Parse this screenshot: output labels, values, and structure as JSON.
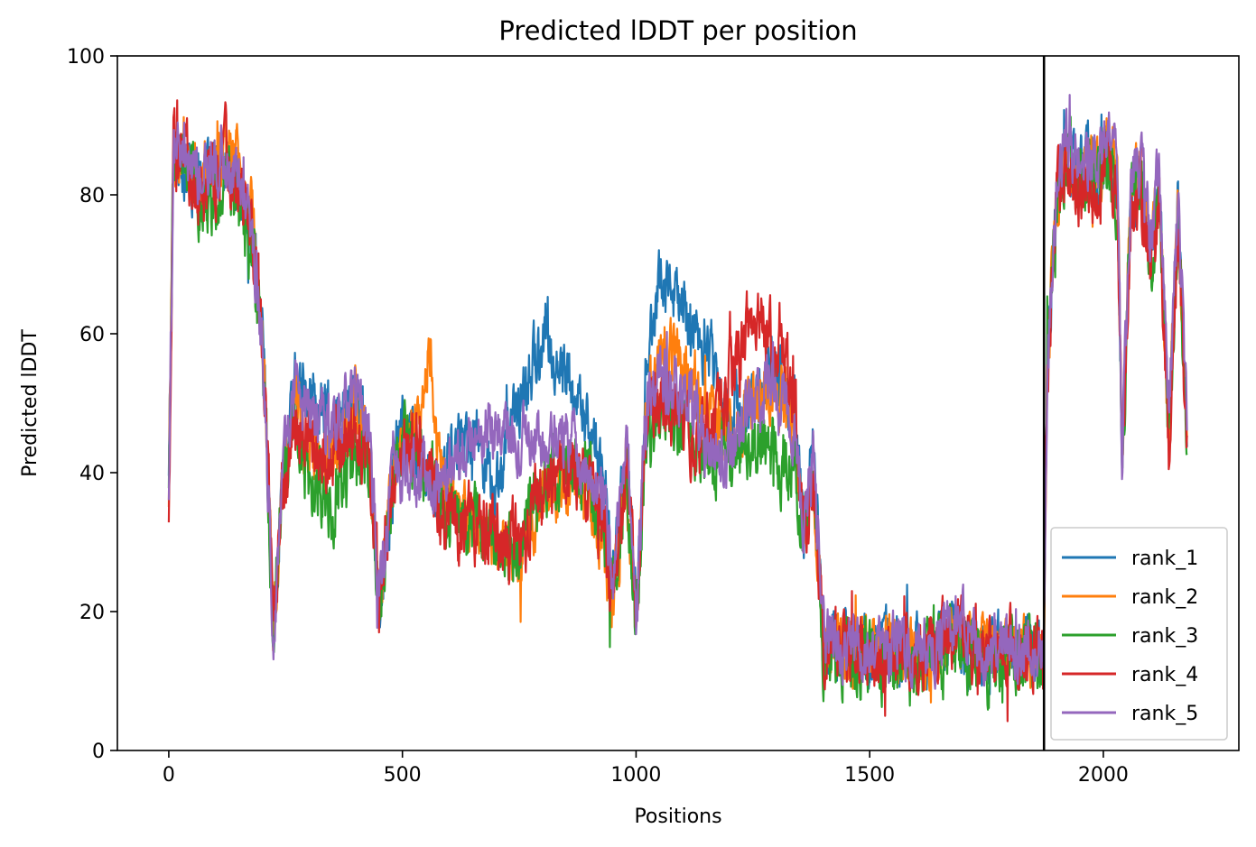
{
  "chart_data": {
    "type": "line",
    "title": "Predicted lDDT per position",
    "xlabel": "Positions",
    "ylabel": "Predicted lDDT",
    "xlim": [
      -110,
      2290
    ],
    "ylim": [
      0,
      100
    ],
    "x_ticks": [
      0,
      500,
      1000,
      1500,
      2000
    ],
    "y_ticks": [
      0,
      20,
      40,
      60,
      80,
      100
    ],
    "grid": false,
    "legend_position": "lower right",
    "vertical_line": 1873,
    "n_positions": 2180,
    "anchor_x": [
      0,
      10,
      40,
      60,
      100,
      120,
      150,
      175,
      200,
      225,
      240,
      270,
      300,
      350,
      400,
      430,
      450,
      480,
      500,
      540,
      560,
      580,
      600,
      620,
      650,
      700,
      750,
      800,
      850,
      900,
      930,
      950,
      980,
      1000,
      1020,
      1050,
      1080,
      1120,
      1160,
      1200,
      1250,
      1300,
      1340,
      1360,
      1380,
      1400,
      1450,
      1500,
      1550,
      1600,
      1650,
      1680,
      1700,
      1750,
      1800,
      1850,
      1872,
      1880,
      1900,
      1920,
      1950,
      1970,
      1990,
      2010,
      2030,
      2040,
      2060,
      2080,
      2100,
      2120,
      2140,
      2160,
      2180
    ],
    "series": [
      {
        "name": "rank_1",
        "color": "#1f77b4",
        "jitter": 4.0,
        "values": [
          38,
          86,
          84,
          81,
          84,
          86,
          82,
          76,
          60,
          16,
          36,
          52,
          52,
          46,
          51,
          43,
          21,
          40,
          48,
          42,
          40,
          36,
          44,
          44,
          47,
          38,
          50,
          59,
          54,
          46,
          41,
          23,
          45,
          18,
          53,
          68,
          66,
          61,
          57,
          49,
          50,
          56,
          48,
          32,
          44,
          16,
          15,
          14,
          15,
          14,
          15,
          17,
          16,
          14,
          14,
          14,
          14,
          55,
          82,
          86,
          83,
          85,
          84,
          88,
          82,
          43,
          80,
          83,
          72,
          82,
          45,
          79,
          43
        ]
      },
      {
        "name": "rank_2",
        "color": "#ff7f0e",
        "jitter": 4.0,
        "values": [
          38,
          86,
          84,
          82,
          84,
          86,
          84,
          78,
          65,
          16,
          36,
          50,
          42,
          43,
          50,
          41,
          21,
          40,
          46,
          47,
          58,
          40,
          36,
          34,
          33,
          30,
          27,
          37,
          39,
          36,
          30,
          21,
          38,
          18,
          48,
          58,
          57,
          54,
          48,
          45,
          50,
          52,
          45,
          30,
          40,
          16,
          15,
          14,
          15,
          14,
          15,
          16,
          16,
          14,
          14,
          14,
          14,
          55,
          80,
          85,
          82,
          84,
          83,
          87,
          82,
          43,
          82,
          84,
          72,
          82,
          45,
          79,
          43
        ]
      },
      {
        "name": "rank_3",
        "color": "#2ca02c",
        "jitter": 4.5,
        "values": [
          38,
          85,
          84,
          80,
          80,
          84,
          77,
          72,
          58,
          16,
          36,
          48,
          38,
          36,
          42,
          42,
          21,
          38,
          45,
          42,
          40,
          36,
          34,
          34,
          33,
          30,
          30,
          39,
          42,
          38,
          33,
          23,
          40,
          18,
          42,
          48,
          48,
          45,
          41,
          44,
          45,
          42,
          40,
          30,
          38,
          14,
          13,
          13,
          13,
          12,
          13,
          14,
          14,
          12,
          13,
          13,
          13,
          55,
          80,
          84,
          82,
          84,
          82,
          86,
          80,
          42,
          80,
          82,
          70,
          80,
          44,
          77,
          43
        ]
      },
      {
        "name": "rank_4",
        "color": "#d62728",
        "jitter": 4.5,
        "values": [
          30,
          85,
          84,
          80,
          82,
          86,
          82,
          76,
          60,
          18,
          36,
          47,
          44,
          43,
          46,
          42,
          21,
          40,
          44,
          44,
          42,
          34,
          35,
          33,
          32,
          30,
          30,
          37,
          40,
          38,
          32,
          23,
          42,
          18,
          46,
          52,
          48,
          46,
          46,
          52,
          62,
          58,
          50,
          32,
          40,
          16,
          14,
          14,
          14,
          14,
          15,
          18,
          16,
          14,
          14,
          14,
          14,
          55,
          80,
          84,
          80,
          82,
          80,
          84,
          78,
          42,
          78,
          80,
          70,
          78,
          42,
          77,
          43
        ]
      },
      {
        "name": "rank_5",
        "color": "#9467bd",
        "jitter": 4.0,
        "values": [
          38,
          86,
          85,
          82,
          84,
          86,
          83,
          77,
          58,
          16,
          38,
          52,
          48,
          48,
          52,
          44,
          22,
          42,
          40,
          40,
          38,
          38,
          40,
          42,
          45,
          46,
          44,
          44,
          46,
          40,
          36,
          25,
          45,
          18,
          48,
          54,
          52,
          50,
          42,
          42,
          50,
          53,
          46,
          32,
          42,
          17,
          15,
          15,
          15,
          14,
          16,
          18,
          17,
          15,
          15,
          15,
          15,
          56,
          82,
          87,
          84,
          86,
          85,
          89,
          84,
          44,
          83,
          86,
          74,
          84,
          47,
          80,
          43
        ]
      }
    ]
  }
}
